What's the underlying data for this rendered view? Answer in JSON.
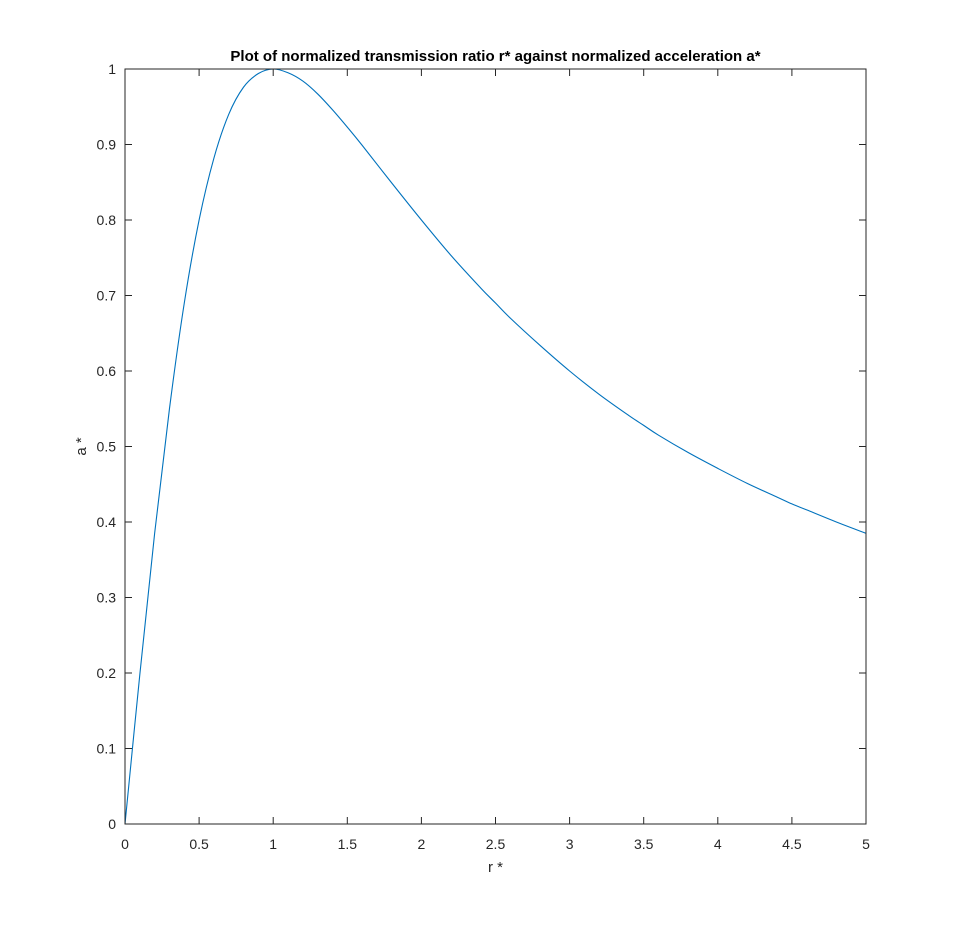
{
  "chart_data": {
    "type": "line",
    "title": "Plot of normalized transmission ratio r* against normalized acceleration a*",
    "xlabel": "r *",
    "ylabel": "a *",
    "xlim": [
      0,
      5
    ],
    "ylim": [
      0,
      1
    ],
    "xticks": [
      0,
      0.5,
      1,
      1.5,
      2,
      2.5,
      3,
      3.5,
      4,
      4.5,
      5
    ],
    "yticks": [
      0,
      0.1,
      0.2,
      0.3,
      0.4,
      0.5,
      0.6,
      0.7,
      0.8,
      0.9,
      1
    ],
    "xtick_labels": [
      "0",
      "0.5",
      "1",
      "1.5",
      "2",
      "2.5",
      "3",
      "3.5",
      "4",
      "4.5",
      "5"
    ],
    "ytick_labels": [
      "0",
      "0.1",
      "0.2",
      "0.3",
      "0.4",
      "0.5",
      "0.6",
      "0.7",
      "0.8",
      "0.9",
      "1"
    ],
    "grid": false,
    "series": [
      {
        "color": "#0072BD",
        "x": [
          0,
          0.1,
          0.2,
          0.3,
          0.4,
          0.5,
          0.6,
          0.7,
          0.8,
          0.9,
          1.0,
          1.1,
          1.2,
          1.3,
          1.4,
          1.5,
          1.6,
          1.8,
          2.0,
          2.2,
          2.4,
          2.5,
          2.6,
          2.8,
          3.0,
          3.2,
          3.4,
          3.5,
          3.6,
          3.8,
          4.0,
          4.2,
          4.4,
          4.5,
          4.6,
          4.8,
          5.0
        ],
        "y": [
          0,
          0.198,
          0.385,
          0.55,
          0.69,
          0.8,
          0.882,
          0.94,
          0.976,
          0.994,
          1.0,
          0.995,
          0.984,
          0.967,
          0.946,
          0.923,
          0.899,
          0.849,
          0.8,
          0.753,
          0.71,
          0.69,
          0.67,
          0.634,
          0.6,
          0.569,
          0.541,
          0.528,
          0.515,
          0.492,
          0.471,
          0.451,
          0.433,
          0.424,
          0.416,
          0.4,
          0.385
        ]
      }
    ]
  }
}
